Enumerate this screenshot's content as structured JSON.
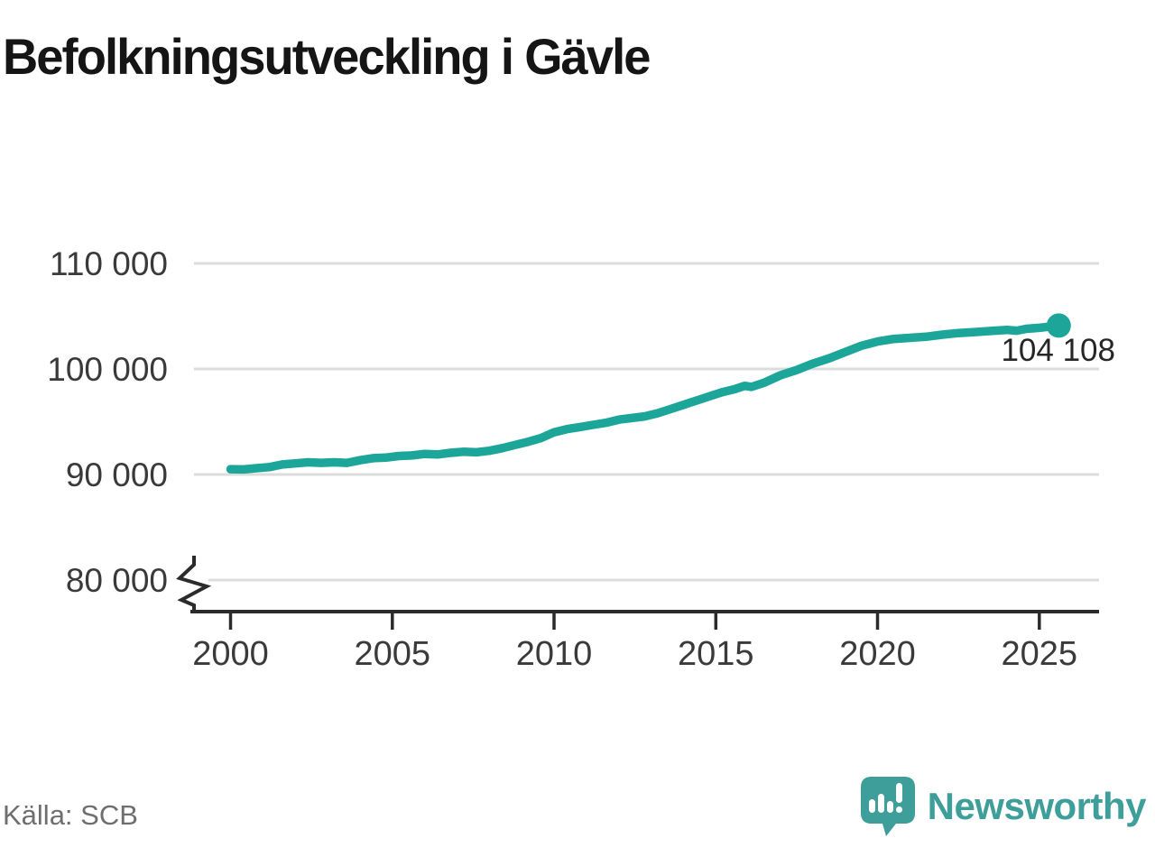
{
  "chart": {
    "title": "Befolkningsutveckling i Gävle",
    "source": "Källa: SCB"
  },
  "brand": {
    "name": "Newsworthy",
    "logo_icon": "newsworthy-speech-bubble-bar-chart-icon",
    "color": "#3e9e99"
  },
  "colors": {
    "line": "#1ca69a",
    "grid": "#dcdcdc",
    "axis": "#2b2b2b",
    "tick_label": "#3a3a3a"
  },
  "chart_data": {
    "type": "line",
    "title": "Befolkningsutveckling i Gävle",
    "source": "Källa: SCB",
    "xlabel": "",
    "ylabel": "",
    "x_ticks": [
      "2000",
      "2005",
      "2010",
      "2015",
      "2020",
      "2025"
    ],
    "y_ticks": [
      "110 000",
      "100 000",
      "90 000",
      "80 000"
    ],
    "xlim": [
      1998.8,
      2026.8
    ],
    "ylim": [
      80000,
      111500
    ],
    "y_axis_break": true,
    "grid": "horizontal-only",
    "legend": "none",
    "end_label": "104 108",
    "end_value": 104108,
    "series": [
      {
        "name": "Befolkning",
        "points": [
          [
            2000.0,
            90500
          ],
          [
            2000.4,
            90480
          ],
          [
            2000.8,
            90600
          ],
          [
            2001.2,
            90700
          ],
          [
            2001.6,
            90950
          ],
          [
            2002.0,
            91050
          ],
          [
            2002.4,
            91150
          ],
          [
            2002.8,
            91100
          ],
          [
            2003.2,
            91150
          ],
          [
            2003.6,
            91100
          ],
          [
            2004.0,
            91350
          ],
          [
            2004.4,
            91550
          ],
          [
            2004.8,
            91600
          ],
          [
            2005.2,
            91750
          ],
          [
            2005.6,
            91800
          ],
          [
            2006.0,
            91950
          ],
          [
            2006.4,
            91900
          ],
          [
            2006.8,
            92050
          ],
          [
            2007.2,
            92150
          ],
          [
            2007.6,
            92100
          ],
          [
            2008.0,
            92250
          ],
          [
            2008.4,
            92500
          ],
          [
            2008.8,
            92800
          ],
          [
            2009.2,
            93100
          ],
          [
            2009.6,
            93450
          ],
          [
            2010.0,
            94000
          ],
          [
            2010.4,
            94300
          ],
          [
            2010.8,
            94500
          ],
          [
            2011.2,
            94700
          ],
          [
            2011.6,
            94900
          ],
          [
            2012.0,
            95200
          ],
          [
            2012.4,
            95350
          ],
          [
            2012.8,
            95500
          ],
          [
            2013.2,
            95800
          ],
          [
            2013.6,
            96200
          ],
          [
            2014.0,
            96600
          ],
          [
            2014.4,
            97000
          ],
          [
            2014.8,
            97400
          ],
          [
            2015.2,
            97800
          ],
          [
            2015.6,
            98100
          ],
          [
            2015.9,
            98400
          ],
          [
            2016.1,
            98300
          ],
          [
            2016.5,
            98700
          ],
          [
            2017.0,
            99400
          ],
          [
            2017.5,
            99900
          ],
          [
            2018.0,
            100500
          ],
          [
            2018.5,
            101000
          ],
          [
            2019.0,
            101600
          ],
          [
            2019.5,
            102200
          ],
          [
            2020.0,
            102600
          ],
          [
            2020.5,
            102850
          ],
          [
            2021.0,
            102950
          ],
          [
            2021.5,
            103050
          ],
          [
            2022.0,
            103250
          ],
          [
            2022.5,
            103400
          ],
          [
            2023.0,
            103500
          ],
          [
            2023.5,
            103600
          ],
          [
            2024.0,
            103700
          ],
          [
            2024.3,
            103620
          ],
          [
            2024.6,
            103800
          ],
          [
            2025.0,
            103900
          ],
          [
            2025.3,
            104000
          ],
          [
            2025.6,
            104108
          ]
        ]
      }
    ]
  }
}
